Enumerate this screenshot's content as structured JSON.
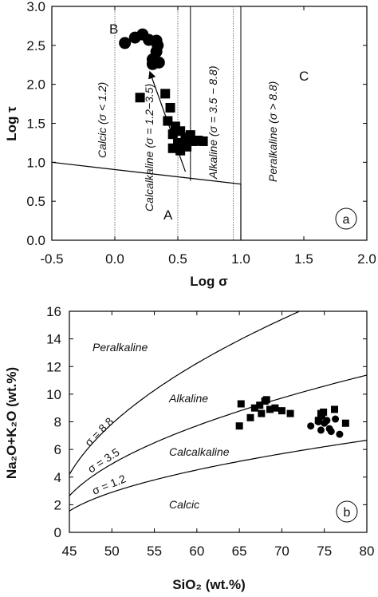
{
  "chart_data": [
    {
      "panel": "a",
      "type": "scatter",
      "xlabel": "Log σ",
      "ylabel": "Log τ",
      "xlim": [
        -0.5,
        2.0
      ],
      "ylim": [
        0.0,
        3.0
      ],
      "xticks": [
        "-0.5",
        "0.0",
        "0.5",
        "1.0",
        "1.5",
        "2.0"
      ],
      "yticks": [
        "0.0",
        "0.5",
        "1.0",
        "1.5",
        "2.0",
        "2.5",
        "3.0"
      ],
      "badge": "a",
      "regions": [
        "A",
        "B",
        "C"
      ],
      "fields": [
        "Calcic (σ < 1.2)",
        "Calcalkaline (σ = 1.2−3.5)",
        "Alkaline (σ = 3.5 − 8.8)",
        "Peralkaline (σ > 8.8)"
      ],
      "divider_log_sigma": [
        0.0,
        0.5,
        0.94
      ],
      "boundary_line": {
        "x": [
          -0.5,
          1.0,
          1.0
        ],
        "y": [
          1.0,
          0.72,
          0.0
        ]
      },
      "trend_arrow": {
        "x": [
          0.56,
          0.28
        ],
        "y": [
          0.88,
          2.15
        ]
      },
      "series": [
        {
          "marker": "circle",
          "x": [
            0.08,
            0.16,
            0.22,
            0.27,
            0.33,
            0.34,
            0.33,
            0.3,
            0.35,
            0.3
          ],
          "y": [
            2.53,
            2.6,
            2.64,
            2.57,
            2.56,
            2.5,
            2.42,
            2.32,
            2.28,
            2.26
          ]
        },
        {
          "marker": "square",
          "x": [
            0.2,
            0.4,
            0.44,
            0.42,
            0.48,
            0.52,
            0.46,
            0.56,
            0.6,
            0.5,
            0.62,
            0.66,
            0.52,
            0.46,
            0.57,
            0.7
          ],
          "y": [
            1.83,
            1.88,
            1.7,
            1.53,
            1.46,
            1.4,
            1.36,
            1.32,
            1.35,
            1.25,
            1.27,
            1.28,
            1.15,
            1.18,
            1.2,
            1.27
          ]
        }
      ]
    },
    {
      "panel": "b",
      "type": "scatter",
      "xlabel": "SiO₂ (wt.%)",
      "ylabel": "Na₂O+K₂O (wt.%)",
      "xlim": [
        45,
        80
      ],
      "ylim": [
        0,
        16
      ],
      "xticks": [
        "45",
        "50",
        "55",
        "60",
        "65",
        "70",
        "75",
        "80"
      ],
      "yticks": [
        "0",
        "2",
        "4",
        "6",
        "8",
        "10",
        "12",
        "14",
        "16"
      ],
      "badge": "b",
      "fields": [
        "Peralkaline",
        "Alkaline",
        "Calcalkaline",
        "Calcic"
      ],
      "curves": [
        {
          "label": "σ = 8.8",
          "sigma": 8.8
        },
        {
          "label": "σ = 3.5",
          "sigma": 3.5
        },
        {
          "label": "σ = 1.2",
          "sigma": 1.2
        }
      ],
      "series": [
        {
          "marker": "square",
          "x": [
            65.0,
            65.2,
            66.3,
            66.8,
            67.4,
            67.6,
            68.0,
            68.2,
            68.6,
            69.2,
            70.0,
            71.0,
            74.3,
            74.6,
            74.9,
            76.2,
            77.5
          ],
          "y": [
            7.7,
            9.3,
            8.3,
            9.0,
            9.2,
            8.6,
            9.5,
            9.6,
            8.9,
            9.0,
            8.8,
            8.6,
            8.1,
            8.6,
            8.7,
            8.9,
            7.9
          ]
        },
        {
          "marker": "circle",
          "x": [
            73.4,
            74.3,
            74.6,
            74.7,
            75.0,
            75.3,
            75.6,
            75.8,
            76.3,
            76.8
          ],
          "y": [
            7.7,
            8.0,
            7.4,
            8.4,
            7.9,
            8.1,
            7.5,
            7.3,
            8.2,
            7.1
          ]
        }
      ]
    }
  ]
}
